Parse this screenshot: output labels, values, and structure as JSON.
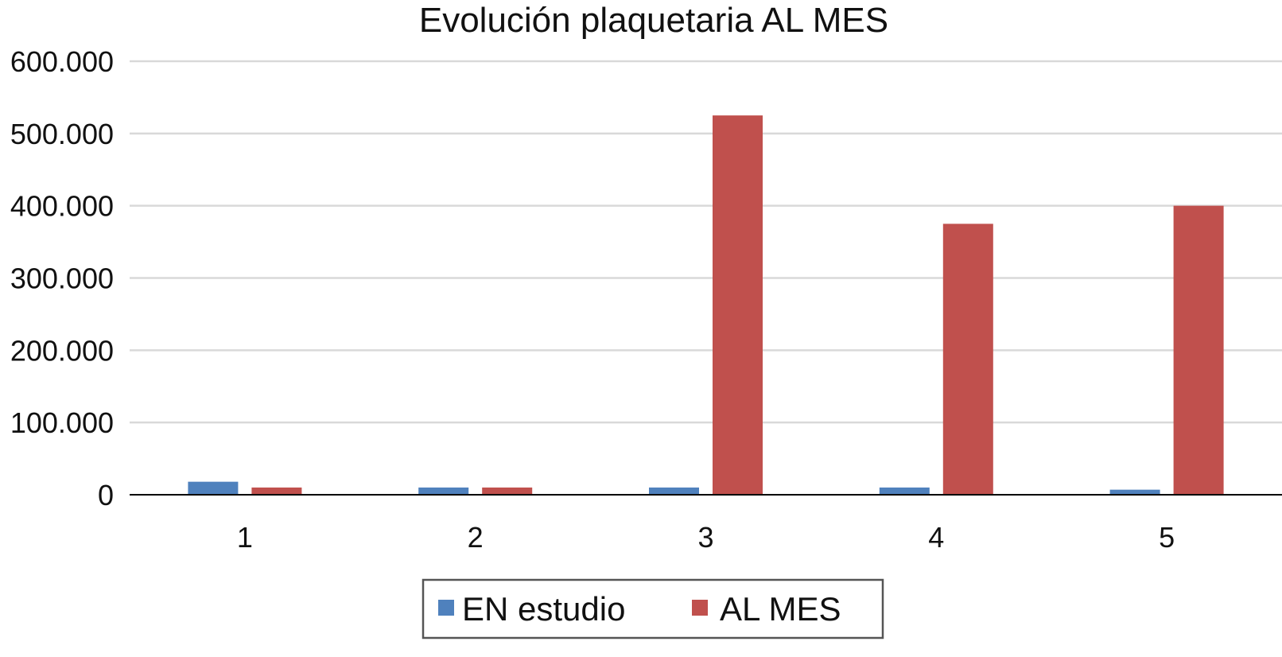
{
  "chart_data": {
    "type": "bar",
    "title": "Evolución plaquetaria AL MES",
    "xlabel": "",
    "ylabel": "",
    "categories": [
      "1",
      "2",
      "3",
      "4",
      "5"
    ],
    "series": [
      {
        "name": "EN estudio",
        "color": "#4f81bd",
        "values": [
          18000,
          10000,
          10000,
          10000,
          7000
        ]
      },
      {
        "name": "AL MES",
        "color": "#c0504d",
        "values": [
          10000,
          10000,
          525000,
          375000,
          400000
        ]
      }
    ],
    "ylim": [
      0,
      600000
    ],
    "yticks": [
      0,
      100000,
      200000,
      300000,
      400000,
      500000,
      600000
    ],
    "ytick_labels": [
      "0",
      "100.000",
      "200.000",
      "300.000",
      "400.000",
      "500.000",
      "600.000"
    ],
    "grid": true,
    "legend_position": "bottom"
  }
}
